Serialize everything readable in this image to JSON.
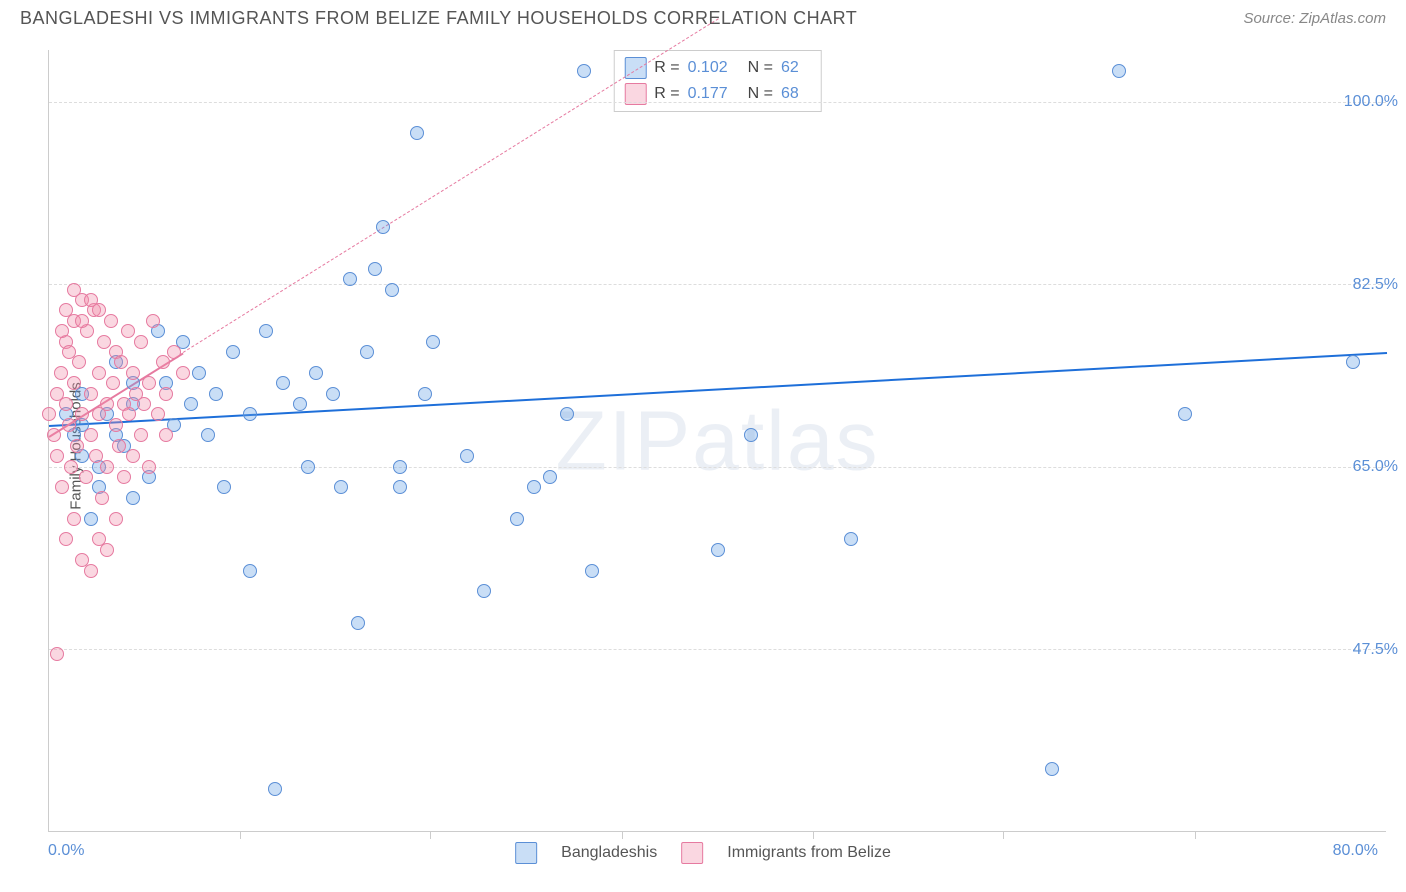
{
  "header": {
    "title": "BANGLADESHI VS IMMIGRANTS FROM BELIZE FAMILY HOUSEHOLDS CORRELATION CHART",
    "source": "Source: ZipAtlas.com"
  },
  "chart": {
    "type": "scatter",
    "ylabel": "Family Households",
    "watermark": "ZIPatlas",
    "background_color": "#ffffff",
    "grid_color": "#dddddd",
    "axis_color": "#cccccc",
    "text_color": "#555555",
    "tick_color": "#5b8fd6",
    "xlim": [
      0,
      80
    ],
    "ylim": [
      30,
      105
    ],
    "xticks": [
      "0.0%",
      "80.0%"
    ],
    "yticks": [
      {
        "value": 47.5,
        "label": "47.5%"
      },
      {
        "value": 65.0,
        "label": "65.0%"
      },
      {
        "value": 82.5,
        "label": "82.5%"
      },
      {
        "value": 100.0,
        "label": "100.0%"
      }
    ],
    "x_minor_ticks": [
      11.4,
      22.8,
      34.3,
      45.7,
      57.1,
      68.6
    ],
    "series": [
      {
        "name": "Bangladeshis",
        "color_fill": "rgba(100,160,230,0.35)",
        "color_stroke": "#5b8fd6",
        "marker_size": 14,
        "points": [
          [
            1,
            70
          ],
          [
            1.5,
            68
          ],
          [
            2,
            72
          ],
          [
            2,
            66
          ],
          [
            2.5,
            60
          ],
          [
            3,
            63
          ],
          [
            3.5,
            70
          ],
          [
            4,
            75
          ],
          [
            4.5,
            67
          ],
          [
            5,
            71
          ],
          [
            5,
            62
          ],
          [
            6,
            64
          ],
          [
            6.5,
            78
          ],
          [
            7,
            73
          ],
          [
            7.5,
            69
          ],
          [
            8,
            77
          ],
          [
            8.5,
            71
          ],
          [
            9,
            74
          ],
          [
            9.5,
            68
          ],
          [
            10,
            72
          ],
          [
            10.5,
            63
          ],
          [
            11,
            76
          ],
          [
            12,
            55
          ],
          [
            12,
            70
          ],
          [
            13,
            78
          ],
          [
            13.5,
            34
          ],
          [
            14,
            73
          ],
          [
            15,
            71
          ],
          [
            15.5,
            65
          ],
          [
            16,
            74
          ],
          [
            17,
            72
          ],
          [
            17.5,
            63
          ],
          [
            18,
            83
          ],
          [
            18.5,
            50
          ],
          [
            19,
            76
          ],
          [
            19.5,
            84
          ],
          [
            20,
            88
          ],
          [
            20.5,
            82
          ],
          [
            21,
            65
          ],
          [
            21,
            63
          ],
          [
            22,
            97
          ],
          [
            22.5,
            72
          ],
          [
            23,
            77
          ],
          [
            25,
            66
          ],
          [
            26,
            53
          ],
          [
            28,
            60
          ],
          [
            29,
            63
          ],
          [
            30,
            64
          ],
          [
            31,
            70
          ],
          [
            32,
            103
          ],
          [
            32.5,
            55
          ],
          [
            40,
            57
          ],
          [
            42,
            68
          ],
          [
            48,
            58
          ],
          [
            64,
            103
          ],
          [
            60,
            36
          ],
          [
            68,
            70
          ],
          [
            78,
            75
          ],
          [
            2,
            69
          ],
          [
            3,
            65
          ],
          [
            4,
            68
          ],
          [
            5,
            73
          ]
        ],
        "trend": {
          "x1": 0,
          "y1": 69,
          "x2": 80,
          "y2": 76,
          "solid_until": 80,
          "color": "#1e6fd9",
          "width": 2
        }
      },
      {
        "name": "Immigrants from Belize",
        "color_fill": "rgba(240,140,170,0.35)",
        "color_stroke": "#e67aa0",
        "marker_size": 14,
        "points": [
          [
            0,
            70
          ],
          [
            0.3,
            68
          ],
          [
            0.5,
            72
          ],
          [
            0.5,
            66
          ],
          [
            0.7,
            74
          ],
          [
            0.8,
            63
          ],
          [
            1,
            71
          ],
          [
            1,
            77
          ],
          [
            1.2,
            69
          ],
          [
            1.3,
            65
          ],
          [
            1.5,
            73
          ],
          [
            1.5,
            79
          ],
          [
            1.7,
            67
          ],
          [
            1.8,
            75
          ],
          [
            2,
            70
          ],
          [
            2,
            81
          ],
          [
            2.2,
            64
          ],
          [
            2.3,
            78
          ],
          [
            2.5,
            72
          ],
          [
            2.5,
            68
          ],
          [
            2.7,
            80
          ],
          [
            2.8,
            66
          ],
          [
            3,
            74
          ],
          [
            3,
            70
          ],
          [
            3.2,
            62
          ],
          [
            3.3,
            77
          ],
          [
            3.5,
            71
          ],
          [
            3.5,
            65
          ],
          [
            3.7,
            79
          ],
          [
            3.8,
            73
          ],
          [
            4,
            69
          ],
          [
            4,
            76
          ],
          [
            4.2,
            67
          ],
          [
            4.3,
            75
          ],
          [
            4.5,
            71
          ],
          [
            4.5,
            64
          ],
          [
            4.7,
            78
          ],
          [
            4.8,
            70
          ],
          [
            5,
            66
          ],
          [
            5,
            74
          ],
          [
            5.2,
            72
          ],
          [
            5.5,
            68
          ],
          [
            5.5,
            77
          ],
          [
            5.7,
            71
          ],
          [
            6,
            65
          ],
          [
            6,
            73
          ],
          [
            6.2,
            79
          ],
          [
            6.5,
            70
          ],
          [
            6.8,
            75
          ],
          [
            7,
            72
          ],
          [
            7,
            68
          ],
          [
            7.5,
            76
          ],
          [
            8,
            74
          ],
          [
            0.5,
            47
          ],
          [
            1,
            58
          ],
          [
            1.5,
            60
          ],
          [
            2,
            56
          ],
          [
            2.5,
            55
          ],
          [
            3,
            58
          ],
          [
            3.5,
            57
          ],
          [
            1,
            80
          ],
          [
            1.5,
            82
          ],
          [
            2,
            79
          ],
          [
            2.5,
            81
          ],
          [
            3,
            80
          ],
          [
            0.8,
            78
          ],
          [
            1.2,
            76
          ],
          [
            4,
            60
          ]
        ],
        "trend": {
          "x1": 0,
          "y1": 68,
          "x2": 8,
          "y2": 76,
          "dashed_to_x": 40,
          "dashed_to_y": 108,
          "color": "#e67aa0",
          "width": 2
        }
      }
    ],
    "stats_box": {
      "rows": [
        {
          "swatch_fill": "rgba(100,160,230,0.35)",
          "swatch_stroke": "#5b8fd6",
          "r_label": "R =",
          "r_value": "0.102",
          "n_label": "N =",
          "n_value": "62"
        },
        {
          "swatch_fill": "rgba(240,140,170,0.35)",
          "swatch_stroke": "#e67aa0",
          "r_label": "R =",
          "r_value": "0.177",
          "n_label": "N =",
          "n_value": "68"
        }
      ]
    },
    "bottom_legend": [
      {
        "swatch_fill": "rgba(100,160,230,0.35)",
        "swatch_stroke": "#5b8fd6",
        "label": "Bangladeshis"
      },
      {
        "swatch_fill": "rgba(240,140,170,0.35)",
        "swatch_stroke": "#e67aa0",
        "label": "Immigrants from Belize"
      }
    ]
  }
}
